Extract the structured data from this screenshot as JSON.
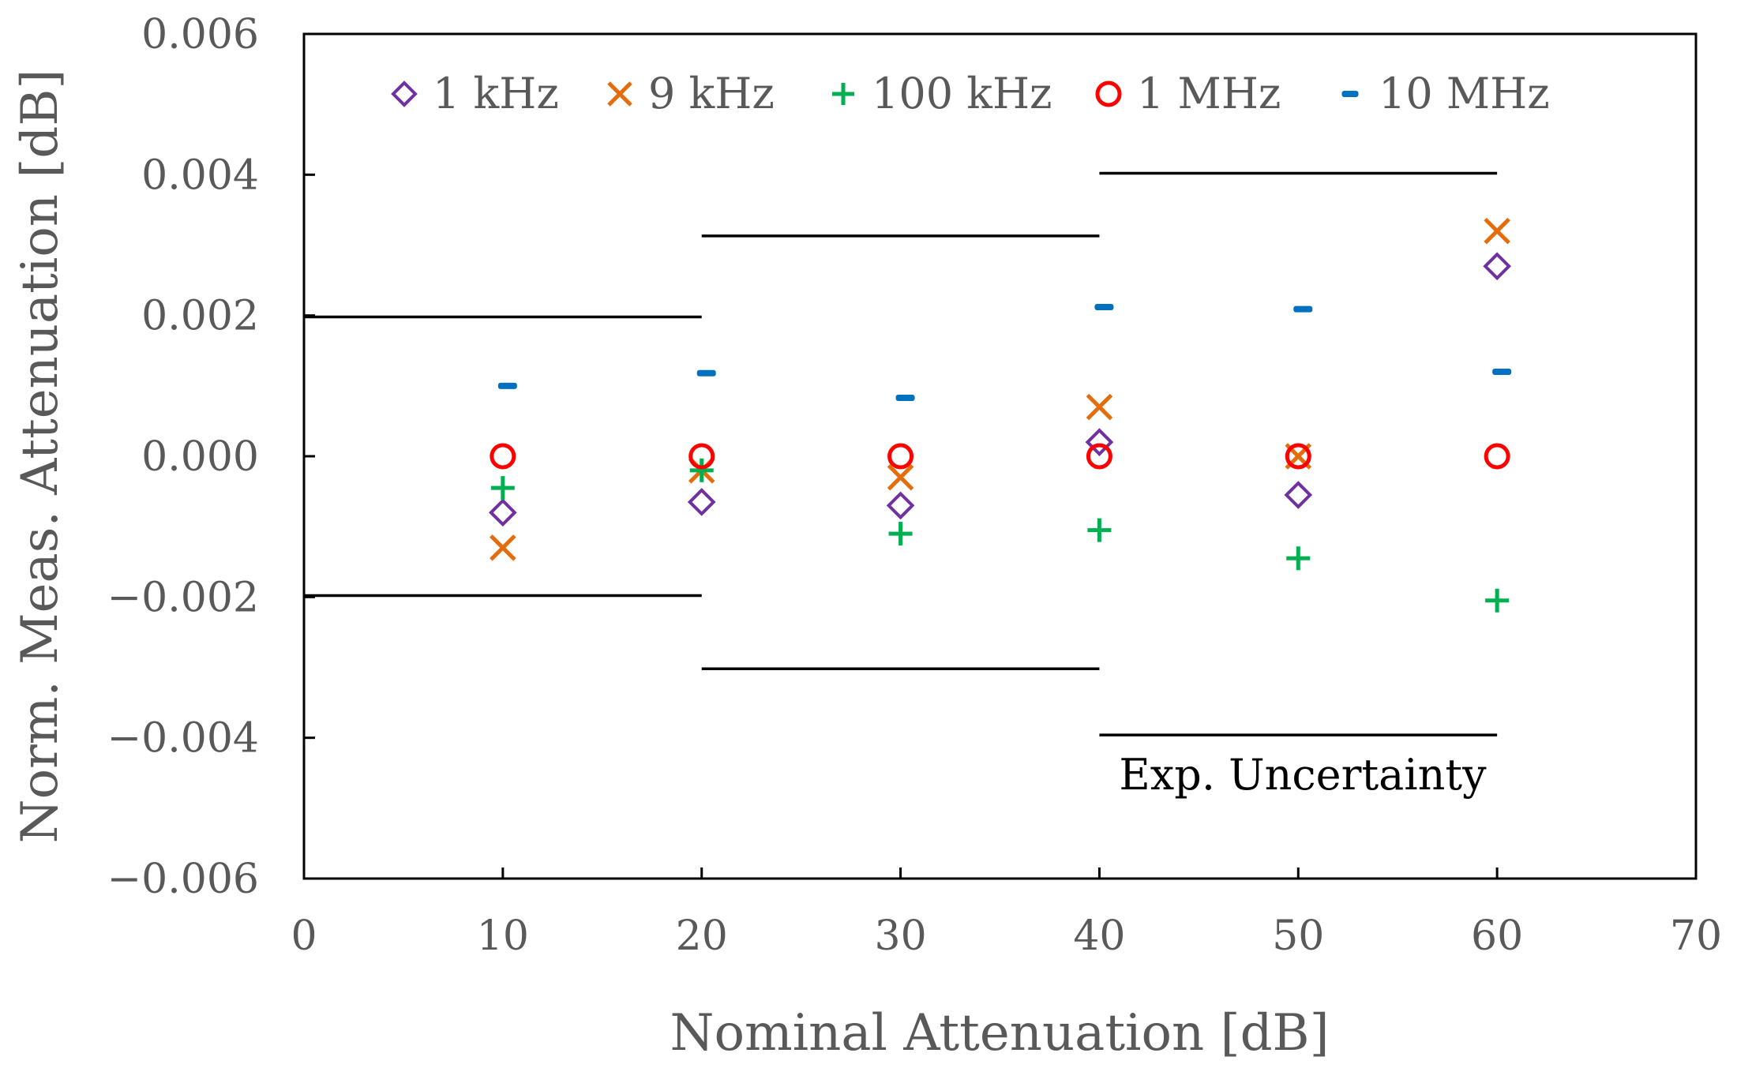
{
  "chart_data": {
    "type": "scatter",
    "xlabel": "Nominal Attenuation [dB]",
    "ylabel": "Norm. Meas. Attenuation [dB]",
    "xlim": [
      0,
      70
    ],
    "ylim": [
      -0.006,
      0.006
    ],
    "x_ticks": [
      0,
      10,
      20,
      30,
      40,
      50,
      60,
      70
    ],
    "x_tick_labels": [
      "0",
      "10",
      "20",
      "30",
      "40",
      "50",
      "60",
      "70"
    ],
    "y_ticks": [
      -0.006,
      -0.004,
      -0.002,
      0.0,
      0.002,
      0.004,
      0.006
    ],
    "y_tick_labels": [
      "−0.006",
      "−0.004",
      "−0.002",
      "0.000",
      "0.002",
      "0.004",
      "0.006"
    ],
    "grid": false,
    "legend_position": "top",
    "x": [
      10,
      20,
      30,
      40,
      50,
      60
    ],
    "series": [
      {
        "name": "1 kHz",
        "marker": "diamond",
        "color": "#7030A0",
        "values": [
          -0.0008,
          -0.00065,
          -0.0007,
          0.0002,
          -0.00055,
          0.0027
        ]
      },
      {
        "name": "9 kHz",
        "marker": "x",
        "color": "#E46C0A",
        "values": [
          -0.0013,
          -0.0002,
          -0.0003,
          0.0007,
          0.0,
          0.0032
        ]
      },
      {
        "name": "100 kHz",
        "marker": "plus",
        "color": "#00B050",
        "values": [
          -0.00045,
          -0.0002,
          -0.0011,
          -0.00105,
          -0.00145,
          -0.00205
        ]
      },
      {
        "name": "1 MHz",
        "marker": "circle",
        "color": "#FF0000",
        "values": [
          0.0,
          0.0,
          0.0,
          0.0,
          0.0,
          0.0
        ]
      },
      {
        "name": "10 MHz",
        "marker": "dash",
        "color": "#0070C0",
        "values": [
          0.001,
          0.00118,
          0.00083,
          0.00212,
          0.00209,
          0.0012
        ]
      }
    ],
    "uncertainty": {
      "label": "Exp. Uncertainty",
      "segments": [
        {
          "x_start": 0,
          "x_end": 20,
          "upper": 0.00198,
          "lower": -0.00198
        },
        {
          "x_start": 20,
          "x_end": 40,
          "upper": 0.00313,
          "lower": -0.00302
        },
        {
          "x_start": 40,
          "x_end": 60,
          "upper": 0.00402,
          "lower": -0.00396
        }
      ]
    }
  }
}
